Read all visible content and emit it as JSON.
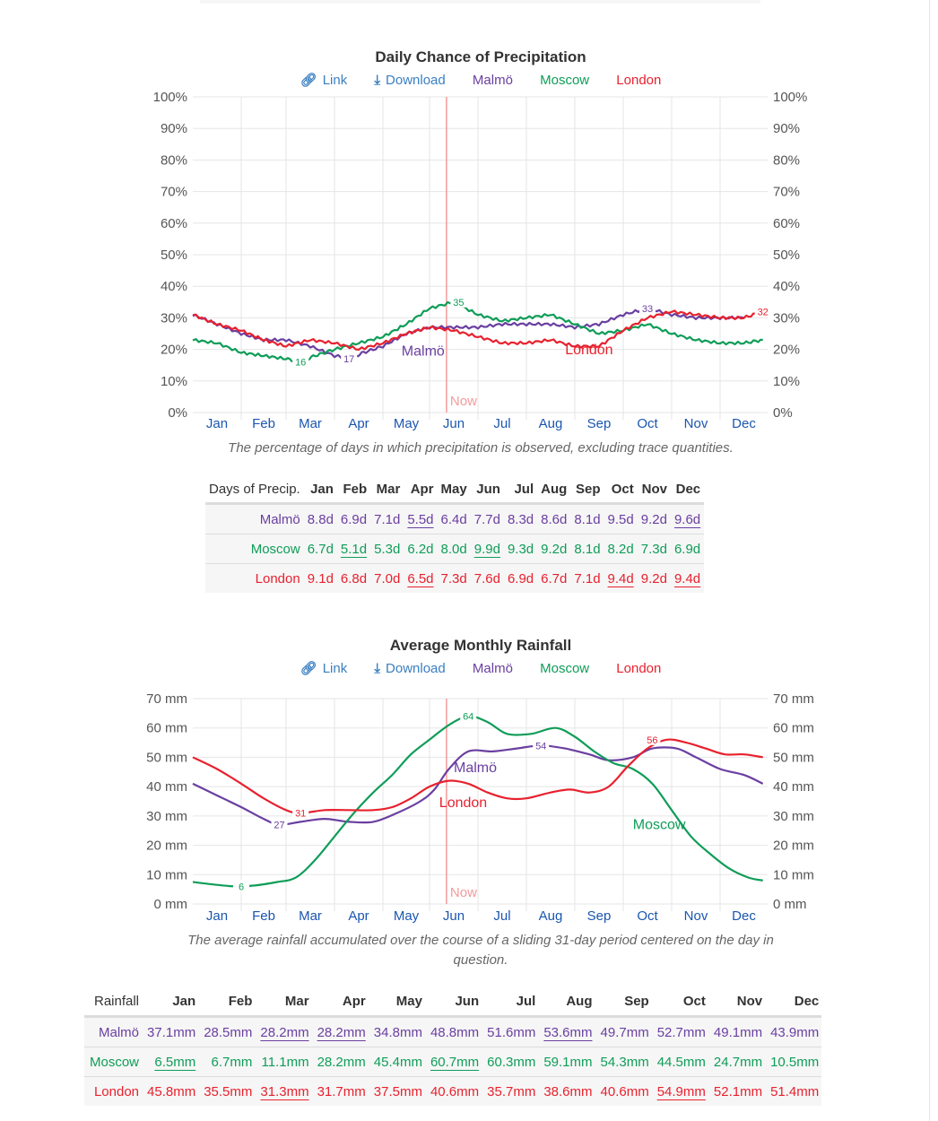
{
  "colors": {
    "malmo": "#6a3fa0",
    "moscow": "#0f9d58",
    "london": "#e8212e",
    "link": "#3a7fc1",
    "month_label": "#1a56b0",
    "now_line": "#f59a9a",
    "grid": "#e5e5e5",
    "axis_text": "#555555"
  },
  "chart_data": [
    {
      "type": "line",
      "title": "Daily Chance of Precipitation",
      "controls": {
        "link_label": "Link",
        "download_label": "Download",
        "link_icon": "link-icon",
        "download_icon": "download-icon"
      },
      "legend": [
        "Malmö",
        "Moscow",
        "London"
      ],
      "legend_placement": "top-center",
      "ylim": [
        0,
        100
      ],
      "yticks": [
        "0%",
        "10%",
        "20%",
        "30%",
        "40%",
        "50%",
        "60%",
        "70%",
        "80%",
        "90%",
        "100%"
      ],
      "xticks": [
        "Jan",
        "Feb",
        "Mar",
        "Apr",
        "May",
        "Jun",
        "Jul",
        "Aug",
        "Sep",
        "Oct",
        "Nov",
        "Dec"
      ],
      "grid": true,
      "now_label": "Now",
      "now_month": 5.35,
      "x_unit": "month",
      "series": [
        {
          "name": "Malmö",
          "key": "malmo",
          "x": [
            0,
            0.5,
            1,
            1.5,
            2,
            2.5,
            3,
            3.3,
            3.6,
            4,
            4.5,
            5,
            5.5,
            6,
            6.5,
            7,
            7.5,
            8,
            8.5,
            9,
            9.5,
            10,
            10.5,
            11,
            11.5
          ],
          "values": [
            31,
            28,
            25,
            23,
            23,
            21,
            18,
            17,
            19,
            21,
            25,
            27,
            27,
            27,
            28,
            28,
            28,
            27,
            28,
            31,
            33,
            31,
            30,
            30,
            30
          ]
        },
        {
          "name": "Moscow",
          "key": "moscow",
          "x": [
            0,
            0.5,
            1,
            1.5,
            2,
            2.3,
            2.6,
            3,
            3.5,
            4,
            4.5,
            5,
            5.5,
            6,
            6.5,
            7,
            7.5,
            8,
            8.5,
            9,
            9.5,
            10,
            10.5,
            11,
            11.5,
            11.9
          ],
          "values": [
            23,
            22,
            19,
            18,
            17,
            16,
            18,
            20,
            22,
            24,
            28,
            33,
            35,
            31,
            29,
            30,
            31,
            28,
            25,
            26,
            28,
            25,
            23,
            22,
            22,
            23
          ]
        },
        {
          "name": "London",
          "key": "london",
          "x": [
            0,
            0.5,
            1,
            1.5,
            2,
            2.5,
            3,
            3.5,
            4,
            4.5,
            5,
            5.5,
            6,
            6.5,
            7,
            7.5,
            8,
            8.5,
            9,
            9.5,
            10,
            10.5,
            11,
            11.5,
            11.9
          ],
          "values": [
            31,
            28,
            26,
            23,
            21,
            23,
            22,
            20,
            22,
            25,
            27,
            26,
            24,
            22,
            22,
            23,
            21,
            21,
            26,
            30,
            32,
            31,
            30,
            30,
            32
          ]
        }
      ],
      "annotations": [
        {
          "series": "moscow",
          "text": "16",
          "x": 2.3,
          "y": 16
        },
        {
          "series": "malmo",
          "text": "17",
          "x": 3.3,
          "y": 17
        },
        {
          "series": "moscow",
          "text": "35",
          "x": 5.6,
          "y": 35
        },
        {
          "series": "malmo",
          "text": "33",
          "x": 9.5,
          "y": 33
        },
        {
          "series": "london",
          "text": "32",
          "x": 11.9,
          "y": 32
        }
      ],
      "series_labels": [
        {
          "series": "malmo",
          "text": "Malmö",
          "x": 4.4,
          "y": 18
        },
        {
          "series": "london",
          "text": "London",
          "x": 7.8,
          "y": 18.5
        }
      ],
      "caption": "The percentage of days in which precipitation is observed, excluding trace quantities."
    },
    {
      "type": "line",
      "title": "Average Monthly Rainfall",
      "controls": {
        "link_label": "Link",
        "download_label": "Download",
        "link_icon": "link-icon",
        "download_icon": "download-icon"
      },
      "legend": [
        "Malmö",
        "Moscow",
        "London"
      ],
      "legend_placement": "top-center",
      "ylim": [
        0,
        70
      ],
      "yticks": [
        "0 mm",
        "10 mm",
        "20 mm",
        "30 mm",
        "40 mm",
        "50 mm",
        "60 mm",
        "70 mm"
      ],
      "xticks": [
        "Jan",
        "Feb",
        "Mar",
        "Apr",
        "May",
        "Jun",
        "Jul",
        "Aug",
        "Sep",
        "Oct",
        "Nov",
        "Dec"
      ],
      "grid": true,
      "now_label": "Now",
      "now_month": 5.35,
      "x_unit": "month",
      "series": [
        {
          "name": "Malmö",
          "key": "malmo",
          "x": [
            0,
            0.5,
            1,
            1.5,
            1.85,
            2.3,
            2.8,
            3.3,
            3.8,
            4.3,
            4.8,
            5.1,
            5.4,
            5.8,
            6.3,
            6.8,
            7.3,
            7.8,
            8.3,
            8.7,
            9.2,
            9.6,
            10.1,
            10.5,
            11,
            11.5,
            11.9
          ],
          "values": [
            41,
            37,
            33,
            29,
            27,
            28,
            29,
            28,
            28,
            31,
            35,
            39,
            46,
            52,
            52,
            53,
            54,
            53,
            51,
            49,
            50,
            53,
            53,
            50,
            46,
            44,
            41
          ]
        },
        {
          "name": "Moscow",
          "key": "moscow",
          "x": [
            0,
            0.5,
            0.9,
            1.3,
            1.8,
            2.2,
            2.6,
            3,
            3.4,
            3.8,
            4.2,
            4.6,
            5,
            5.4,
            5.8,
            6.2,
            6.6,
            7.1,
            7.6,
            8,
            8.4,
            8.8,
            9.2,
            9.6,
            10,
            10.4,
            10.8,
            11.2,
            11.6,
            11.9
          ],
          "values": [
            7.5,
            6.5,
            6,
            6.3,
            7.5,
            9,
            15,
            23,
            31,
            38,
            44,
            51,
            56,
            61,
            64,
            62,
            58,
            58,
            60,
            57,
            52,
            48,
            46,
            41,
            32,
            23,
            17,
            12,
            9,
            8
          ]
        },
        {
          "name": "London",
          "key": "london",
          "x": [
            0,
            0.5,
            1,
            1.5,
            2,
            2.3,
            2.8,
            3.3,
            3.8,
            4.2,
            4.6,
            5,
            5.4,
            5.8,
            6.2,
            6.6,
            7,
            7.5,
            7.9,
            8.3,
            8.7,
            9.1,
            9.5,
            9.9,
            10.3,
            10.7,
            11.1,
            11.5,
            11.9
          ],
          "values": [
            50,
            46,
            41,
            36,
            32,
            31,
            32,
            32,
            32,
            33,
            36,
            40,
            42,
            41,
            38,
            36,
            36,
            38,
            39,
            38,
            40,
            47,
            53,
            56,
            55,
            53,
            51,
            51,
            50
          ]
        }
      ],
      "annotations": [
        {
          "series": "moscow",
          "text": "6",
          "x": 1,
          "y": 6
        },
        {
          "series": "malmo",
          "text": "27",
          "x": 1.85,
          "y": 27
        },
        {
          "series": "london",
          "text": "31",
          "x": 2.3,
          "y": 31
        },
        {
          "series": "moscow",
          "text": "64",
          "x": 5.8,
          "y": 64
        },
        {
          "series": "malmo",
          "text": "54",
          "x": 7.3,
          "y": 54
        },
        {
          "series": "london",
          "text": "56",
          "x": 9.6,
          "y": 56
        }
      ],
      "series_labels": [
        {
          "series": "malmo",
          "text": "Malmö",
          "x": 5.5,
          "y": 45
        },
        {
          "series": "london",
          "text": "London",
          "x": 5.2,
          "y": 33
        },
        {
          "series": "moscow",
          "text": "Moscow",
          "x": 9.2,
          "y": 25.5
        }
      ],
      "caption": "The average rainfall accumulated over the course of a sliding 31-day period centered on the day in question."
    }
  ],
  "tables": {
    "days_of_precip": {
      "row_header": "Days of Precip.",
      "columns": [
        "Jan",
        "Feb",
        "Mar",
        "Apr",
        "May",
        "Jun",
        "Jul",
        "Aug",
        "Sep",
        "Oct",
        "Nov",
        "Dec"
      ],
      "rows": [
        {
          "city": "Malmö",
          "key": "malmo",
          "values": [
            "8.8d",
            "6.9d",
            "7.1d",
            "5.5d",
            "6.4d",
            "7.7d",
            "8.3d",
            "8.6d",
            "8.1d",
            "9.5d",
            "9.2d",
            "9.6d"
          ],
          "underlined": [
            3,
            11
          ]
        },
        {
          "city": "Moscow",
          "key": "moscow",
          "values": [
            "6.7d",
            "5.1d",
            "5.3d",
            "6.2d",
            "8.0d",
            "9.9d",
            "9.3d",
            "9.2d",
            "8.1d",
            "8.2d",
            "7.3d",
            "6.9d"
          ],
          "underlined": [
            1,
            5
          ]
        },
        {
          "city": "London",
          "key": "london",
          "values": [
            "9.1d",
            "6.8d",
            "7.0d",
            "6.5d",
            "7.3d",
            "7.6d",
            "6.9d",
            "6.7d",
            "7.1d",
            "9.4d",
            "9.2d",
            "9.4d"
          ],
          "underlined": [
            3,
            9,
            11
          ]
        }
      ]
    },
    "rainfall": {
      "row_header": "Rainfall",
      "columns": [
        "Jan",
        "Feb",
        "Mar",
        "Apr",
        "May",
        "Jun",
        "Jul",
        "Aug",
        "Sep",
        "Oct",
        "Nov",
        "Dec"
      ],
      "rows": [
        {
          "city": "Malmö",
          "key": "malmo",
          "values": [
            "37.1mm",
            "28.5mm",
            "28.2mm",
            "28.2mm",
            "34.8mm",
            "48.8mm",
            "51.6mm",
            "53.6mm",
            "49.7mm",
            "52.7mm",
            "49.1mm",
            "43.9mm"
          ],
          "underlined": [
            2,
            3,
            7
          ]
        },
        {
          "city": "Moscow",
          "key": "moscow",
          "values": [
            "6.5mm",
            "6.7mm",
            "11.1mm",
            "28.2mm",
            "45.4mm",
            "60.7mm",
            "60.3mm",
            "59.1mm",
            "54.3mm",
            "44.5mm",
            "24.7mm",
            "10.5mm"
          ],
          "underlined": [
            0,
            5
          ]
        },
        {
          "city": "London",
          "key": "london",
          "values": [
            "45.8mm",
            "35.5mm",
            "31.3mm",
            "31.7mm",
            "37.5mm",
            "40.6mm",
            "35.7mm",
            "38.6mm",
            "40.6mm",
            "54.9mm",
            "52.1mm",
            "51.4mm"
          ],
          "underlined": [
            2,
            9
          ]
        }
      ]
    }
  }
}
